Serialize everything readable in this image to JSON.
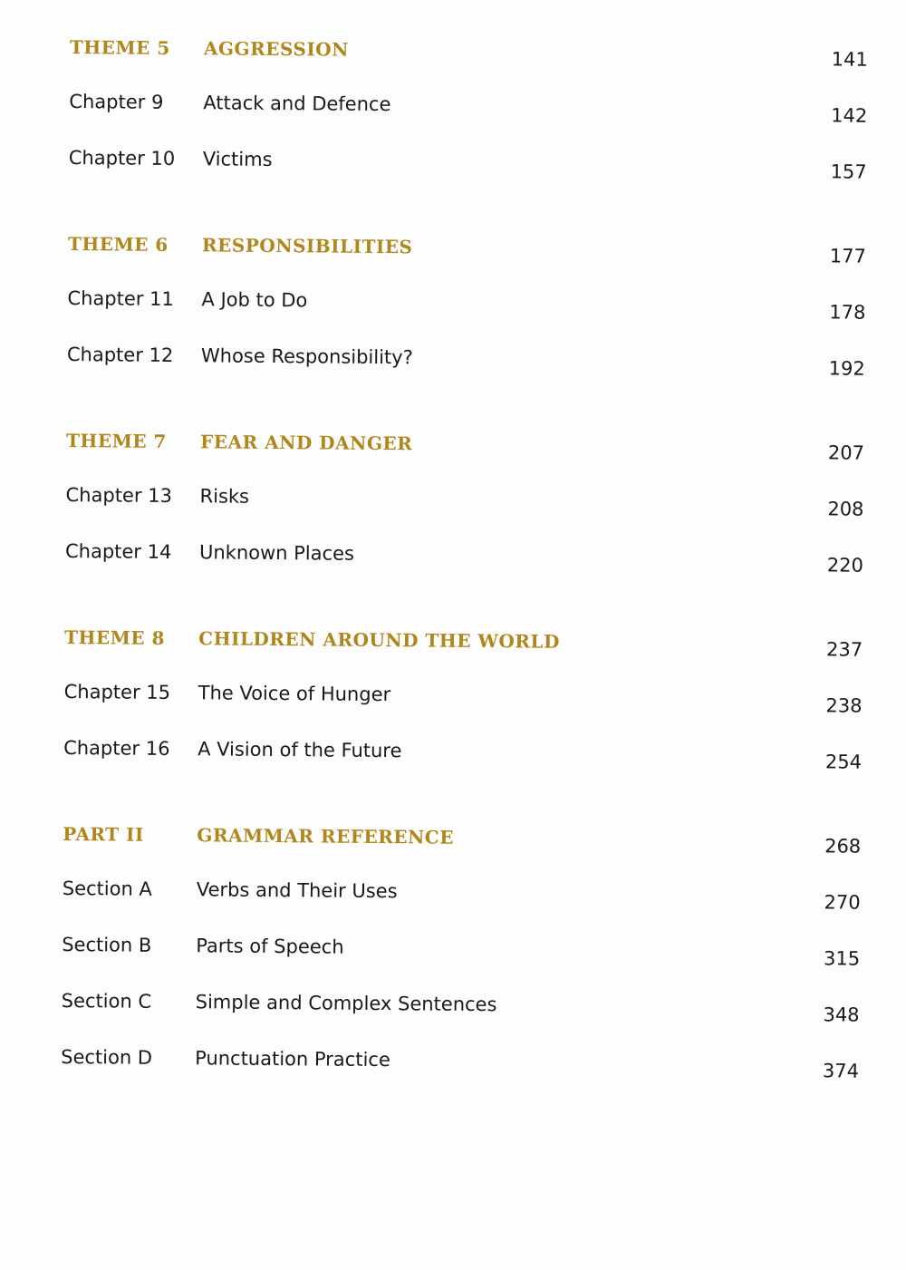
{
  "colors": {
    "heading": "#b0871c",
    "text": "#1a1a1a"
  },
  "groups": [
    {
      "label": "THEME 5",
      "title": "AGGRESSION",
      "page": "141",
      "items": [
        {
          "label": "Chapter 9",
          "title": "Attack and Defence",
          "page": "142"
        },
        {
          "label": "Chapter 10",
          "title": "Victims",
          "page": "157"
        }
      ]
    },
    {
      "label": "THEME 6",
      "title": "RESPONSIBILITIES",
      "page": "177",
      "items": [
        {
          "label": "Chapter 11",
          "title": "A Job to Do",
          "page": "178"
        },
        {
          "label": "Chapter 12",
          "title": "Whose Responsibility?",
          "page": "192"
        }
      ]
    },
    {
      "label": "THEME 7",
      "title": "FEAR AND DANGER",
      "page": "207",
      "items": [
        {
          "label": "Chapter 13",
          "title": "Risks",
          "page": "208"
        },
        {
          "label": "Chapter 14",
          "title": "Unknown Places",
          "page": "220"
        }
      ]
    },
    {
      "label": "THEME 8",
      "title": "CHILDREN AROUND THE WORLD",
      "page": "237",
      "items": [
        {
          "label": "Chapter 15",
          "title": "The Voice of Hunger",
          "page": "238"
        },
        {
          "label": "Chapter 16",
          "title": "A Vision of the Future",
          "page": "254"
        }
      ]
    },
    {
      "label": "PART II",
      "title": "GRAMMAR REFERENCE",
      "page": "268",
      "items": [
        {
          "label": "Section A",
          "title": "Verbs and Their Uses",
          "page": "270"
        },
        {
          "label": "Section B",
          "title": "Parts of Speech",
          "page": "315"
        },
        {
          "label": "Section C",
          "title": "Simple and Complex Sentences",
          "page": "348"
        },
        {
          "label": "Section D",
          "title": "Punctuation Practice",
          "page": "374"
        }
      ]
    }
  ]
}
